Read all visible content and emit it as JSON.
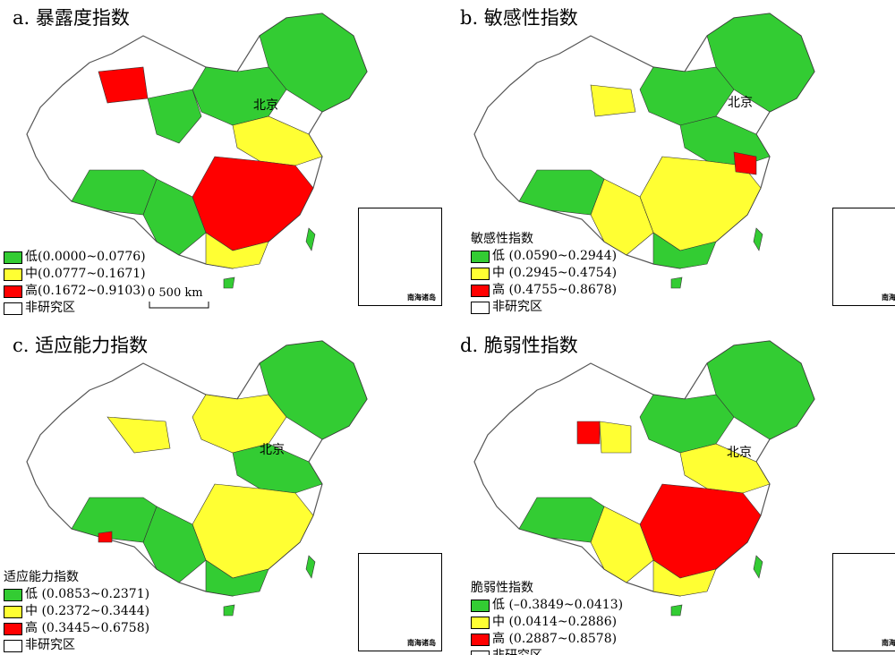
{
  "panels": [
    {
      "id": "a",
      "title": "a. 暴露度指数",
      "legend_title": "",
      "beijing_label": "北京",
      "legend": [
        {
          "label": "低(0.0000~0.0776)",
          "color": "#33cc33"
        },
        {
          "label": "中(0.0777~0.1671)",
          "color": "#ffff33"
        },
        {
          "label": "高(0.1672~0.9103)",
          "color": "#ff0000"
        },
        {
          "label": "非研究区",
          "color": "#ffffff"
        }
      ],
      "scale_label": "0    500 km",
      "inset_label": "南海诸岛"
    },
    {
      "id": "b",
      "title": "b. 敏感性指数",
      "legend_title": "敏感性指数",
      "beijing_label": "北京",
      "legend": [
        {
          "label": "低 (0.0590~0.2944)",
          "color": "#33cc33"
        },
        {
          "label": "中 (0.2945~0.4754)",
          "color": "#ffff33"
        },
        {
          "label": "高 (0.4755~0.8678)",
          "color": "#ff0000"
        },
        {
          "label": "非研究区",
          "color": "#ffffff"
        }
      ],
      "scale_label": "",
      "inset_label": "南海诸岛"
    },
    {
      "id": "c",
      "title": "c. 适应能力指数",
      "legend_title": "适应能力指数",
      "beijing_label": "北京",
      "legend": [
        {
          "label": "低 (0.0853~0.2371)",
          "color": "#33cc33"
        },
        {
          "label": "中 (0.2372~0.3444)",
          "color": "#ffff33"
        },
        {
          "label": "高 (0.3445~0.6758)",
          "color": "#ff0000"
        },
        {
          "label": "非研究区",
          "color": "#ffffff"
        }
      ],
      "scale_label": "",
      "inset_label": "南海诸岛"
    },
    {
      "id": "d",
      "title": "d. 脆弱性指数",
      "legend_title": "脆弱性指数",
      "beijing_label": "北京",
      "legend": [
        {
          "label": "低 (–0.3849~0.0413)",
          "color": "#33cc33"
        },
        {
          "label": "中 (0.0414~0.2886)",
          "color": "#ffff33"
        },
        {
          "label": "高 (0.2887~0.8578)",
          "color": "#ff0000"
        },
        {
          "label": "非研究区",
          "color": "#ffffff"
        }
      ],
      "scale_label": "",
      "inset_label": "南海诸岛"
    }
  ]
}
